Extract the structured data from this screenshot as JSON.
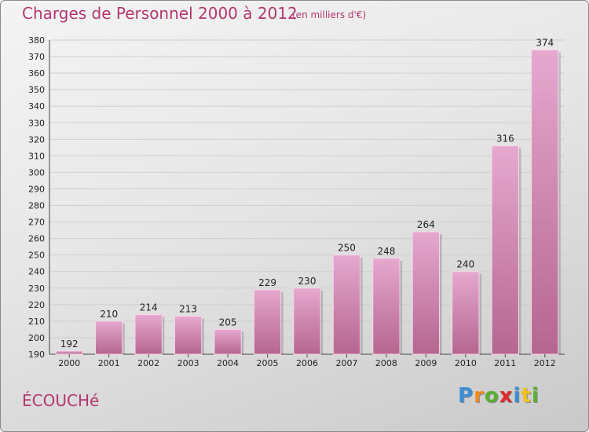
{
  "header": {
    "title": "Charges de Personnel 2000 à 2012",
    "subtitle": "(en milliers d'€)"
  },
  "footer": {
    "commune": "ÉCOUCHé",
    "brand": [
      "P",
      "r",
      "o",
      "x",
      "i",
      "t",
      "i"
    ]
  },
  "colors": {
    "title": "#b4366f",
    "bar_light": "#e6a8cf",
    "bar_dark": "#b5668f",
    "brand": [
      "#3a8fd6",
      "#f18a1c",
      "#5bb032",
      "#e02a2a",
      "#3a8fd6",
      "#f1c21c",
      "#5bb032"
    ]
  },
  "chart_data": {
    "type": "bar",
    "title": "Charges de Personnel 2000 à 2012",
    "subtitle": "(en milliers d'€)",
    "categories": [
      "2000",
      "2001",
      "2002",
      "2003",
      "2004",
      "2005",
      "2006",
      "2007",
      "2008",
      "2009",
      "2010",
      "2011",
      "2012"
    ],
    "values": [
      192,
      210,
      214,
      213,
      205,
      229,
      230,
      250,
      248,
      264,
      240,
      316,
      374
    ],
    "ylim": [
      190,
      380
    ],
    "yticks": [
      190,
      200,
      210,
      220,
      230,
      240,
      250,
      260,
      270,
      280,
      290,
      300,
      310,
      320,
      330,
      340,
      350,
      360,
      370,
      380
    ],
    "grid": true,
    "legend": "none"
  }
}
